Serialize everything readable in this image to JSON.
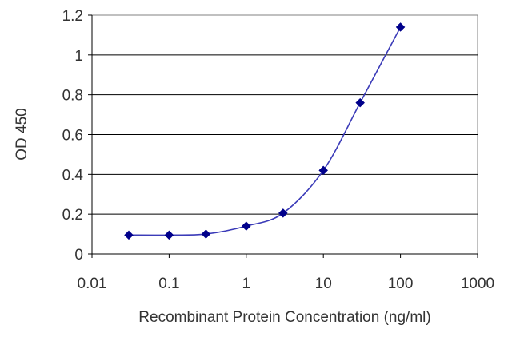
{
  "chart_data": {
    "type": "line",
    "title": "",
    "xlabel": "Recombinant Protein Concentration (ng/ml)",
    "ylabel": "OD 450",
    "x_scale": "log",
    "xlim": [
      0.01,
      1000
    ],
    "ylim": [
      0,
      1.2
    ],
    "x_ticks": [
      0.01,
      0.1,
      1,
      10,
      100,
      1000
    ],
    "x_tick_labels": [
      "0.01",
      "0.1",
      "1",
      "10",
      "100",
      "1000"
    ],
    "y_ticks": [
      0,
      0.2,
      0.4,
      0.6,
      0.8,
      1,
      1.2
    ],
    "y_tick_labels": [
      "0",
      "0.2",
      "0.4",
      "0.6",
      "0.8",
      "1",
      "1.2"
    ],
    "grid": "horizontal",
    "legend": "none",
    "series": [
      {
        "color": "#00008b",
        "marker": "diamond",
        "x": [
          0.03,
          0.1,
          0.3,
          1,
          3,
          10,
          30,
          100
        ],
        "y": [
          0.095,
          0.095,
          0.1,
          0.14,
          0.205,
          0.42,
          0.76,
          1.14
        ]
      }
    ]
  }
}
